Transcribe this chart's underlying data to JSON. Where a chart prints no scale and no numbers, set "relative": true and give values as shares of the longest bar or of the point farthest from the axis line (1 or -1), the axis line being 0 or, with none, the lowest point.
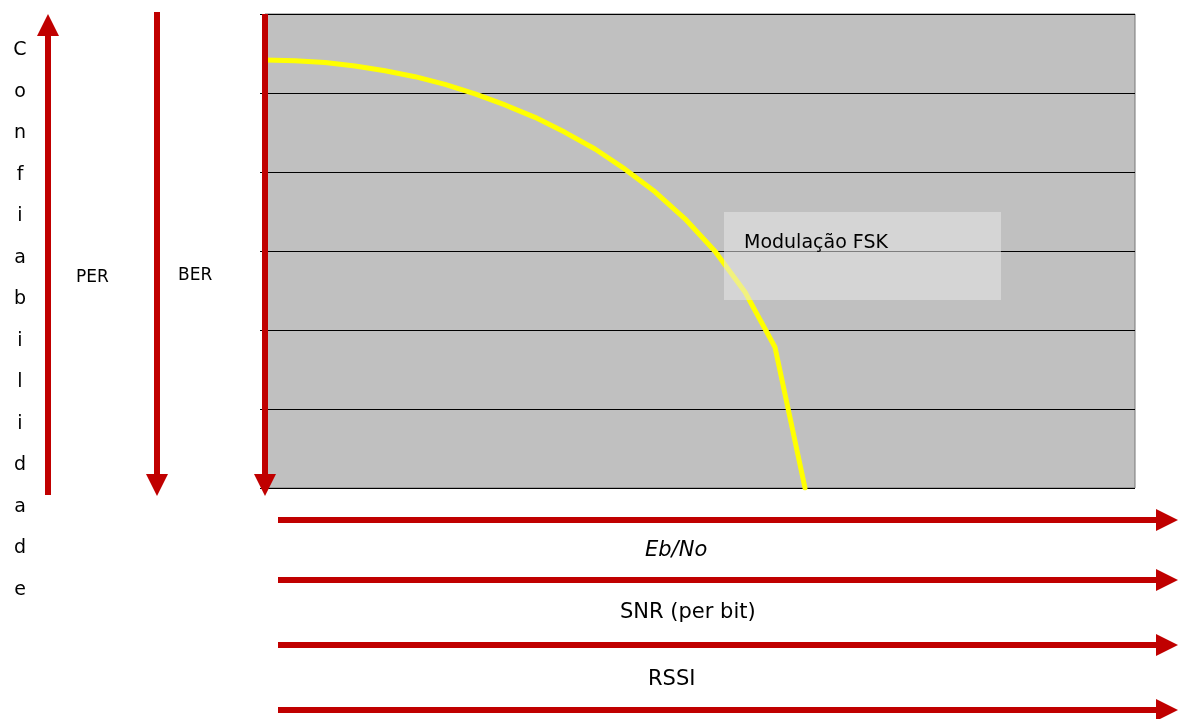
{
  "chart_data": {
    "type": "line",
    "relative": true,
    "ylabel": "Confiabilidade",
    "annotations": [
      "PER",
      "BER",
      "Eb/No",
      "SNR (per bit)",
      "RSSI"
    ],
    "categories": [
      null,
      null,
      null,
      null,
      null,
      null,
      null,
      null,
      null,
      null,
      null,
      null,
      null,
      null,
      null,
      null,
      null,
      null,
      null,
      null,
      null,
      null,
      null,
      null,
      null,
      null,
      null,
      null,
      null,
      null
    ],
    "series": [
      {
        "name": "Modulação FSK",
        "color": "#ffff00",
        "values": [
          1,
          0.998,
          0.994,
          0.986,
          0.975,
          0.961,
          0.943,
          0.921,
          0.895,
          0.866,
          0.831,
          0.792,
          0.745,
          0.692,
          0.629,
          0.553,
          0.458,
          0.329,
          0,
          null,
          null,
          null,
          null,
          null,
          null,
          null,
          null,
          null,
          null,
          null
        ]
      }
    ],
    "grid": "y",
    "marker": "none",
    "line_style": "solid"
  }
}
